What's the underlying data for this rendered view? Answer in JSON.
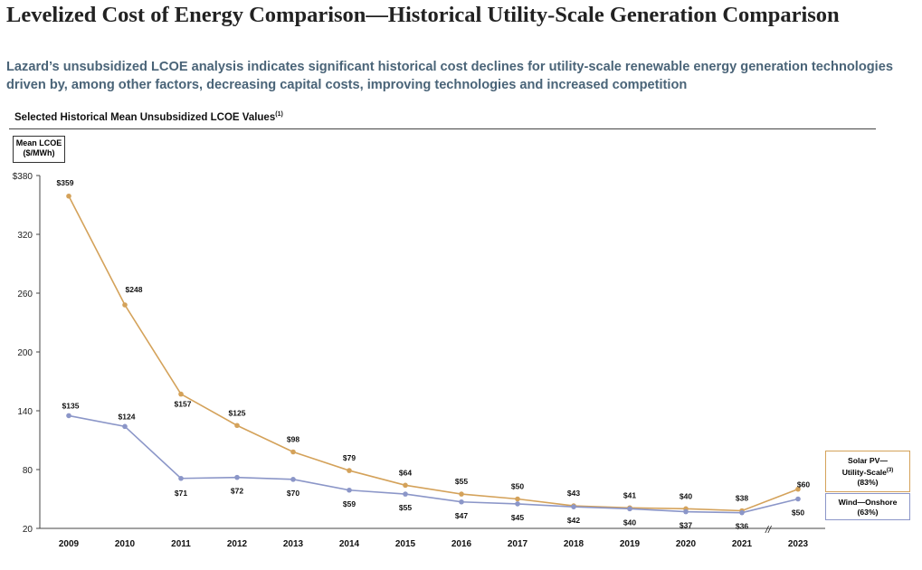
{
  "header": {
    "title": "Levelized Cost of Energy Comparison—Historical Utility-Scale Generation Comparison",
    "subtitle": "Lazard’s unsubsidized LCOE analysis indicates significant historical cost declines for utility-scale renewable energy generation technologies driven by, among other factors, decreasing capital costs, improving technologies and increased competition"
  },
  "chart_heading": {
    "text": "Selected Historical Mean Unsubsidized LCOE Values",
    "footnote": "(1)"
  },
  "y_label": {
    "line1": "Mean LCOE",
    "line2": "($/MWh)"
  },
  "legend": {
    "solar_line1": "Solar PV—",
    "solar_line2": "Utility-Scale",
    "solar_footnote": "(3)",
    "solar_pct": "(83%)",
    "wind_line1": "Wind—Onshore",
    "wind_pct": "(63%)"
  },
  "axis_break_mark": "//",
  "colors": {
    "solar": "#d4a25a",
    "wind": "#8b96c8",
    "axis": "#444444",
    "legend_solar_border": "#d4a25a",
    "legend_wind_border": "#8b96c8"
  },
  "chart_data": {
    "type": "line",
    "title": "Selected Historical Mean Unsubsidized LCOE Values",
    "ylabel": "Mean LCOE ($/MWh)",
    "xlabel": "",
    "ylim": [
      20,
      380
    ],
    "y_ticks": [
      20,
      80,
      140,
      200,
      260,
      320,
      380
    ],
    "y_tick_labels": [
      "20",
      "80",
      "140",
      "200",
      "260",
      "320",
      "$380"
    ],
    "x": [
      "2009",
      "2010",
      "2011",
      "2012",
      "2013",
      "2014",
      "2015",
      "2016",
      "2017",
      "2018",
      "2019",
      "2020",
      "2021",
      "2023"
    ],
    "axis_break_between": [
      "2021",
      "2023"
    ],
    "grid": false,
    "legend_position": "right",
    "series": [
      {
        "name": "Solar PV—Utility-Scale (83%)",
        "color": "#d4a25a",
        "values": [
          359,
          248,
          157,
          125,
          98,
          79,
          64,
          55,
          50,
          43,
          41,
          40,
          38,
          60
        ],
        "labels": [
          "$359",
          "$248",
          "$157",
          "$125",
          "$98",
          "$79",
          "$64",
          "$55",
          "$50",
          "$43",
          "$41",
          "$40",
          "$38",
          "$60"
        ]
      },
      {
        "name": "Wind—Onshore (63%)",
        "color": "#8b96c8",
        "values": [
          135,
          124,
          71,
          72,
          70,
          59,
          55,
          47,
          45,
          42,
          40,
          37,
          36,
          50
        ],
        "labels": [
          "$135",
          "$124",
          "$71",
          "$72",
          "$70",
          "$59",
          "$55",
          "$47",
          "$45",
          "$42",
          "$40",
          "$37",
          "$36",
          "$50"
        ]
      }
    ]
  }
}
